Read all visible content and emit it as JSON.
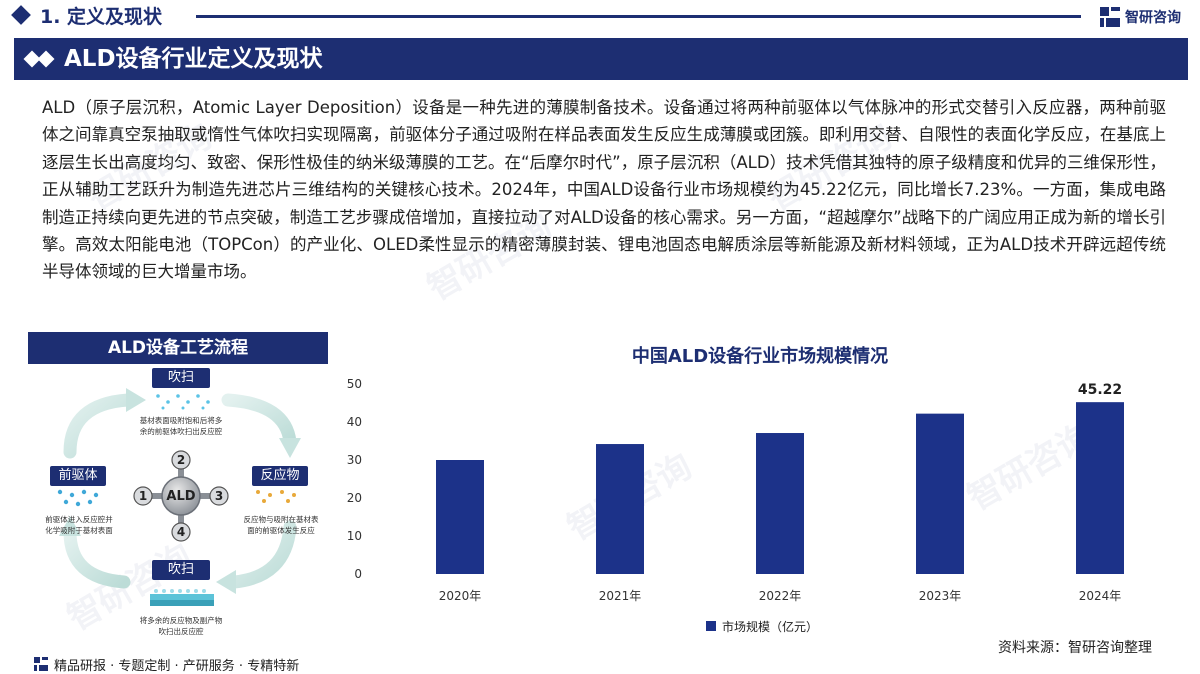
{
  "header": {
    "section_title": "1. 定义及现状",
    "logo_text": "智研咨询",
    "banner_title": "ALD设备行业定义及现状"
  },
  "body_text": "ALD（原子层沉积，Atomic Layer Deposition）设备是一种先进的薄膜制备技术。设备通过将两种前驱体以气体脉冲的形式交替引入反应器，两种前驱体之间靠真空泵抽取或惰性气体吹扫实现隔离，前驱体分子通过吸附在样品表面发生反应生成薄膜或团簇。即利用交替、自限性的表面化学反应，在基底上逐层生长出高度均匀、致密、保形性极佳的纳米级薄膜的工艺。在“后摩尔时代”，原子层沉积（ALD）技术凭借其独特的原子级精度和优异的三维保形性，正从辅助工艺跃升为制造先进芯片三维结构的关键核心技术。2024年，中国ALD设备行业市场规模约为45.22亿元，同比增长7.23%。一方面，集成电路制造正持续向更先进的节点突破，制造工艺步骤成倍增加，直接拉动了对ALD设备的核心需求。另一方面，“超越摩尔”战略下的广阔应用正成为新的增长引擎。高效太阳能电池（TOPCon）的产业化、OLED柔性显示的精密薄膜封装、锂电池固态电解质涂层等新能源及新材料领域，正为ALD技术开辟远超传统半导体领域的巨大增量市场。",
  "process_panel": {
    "title": "ALD设备工艺流程",
    "center_label": "ALD",
    "step_numbers": [
      "1",
      "2",
      "3",
      "4"
    ],
    "stages": {
      "top": {
        "label": "吹扫",
        "desc_line1": "基材表面吸附饱和后将多",
        "desc_line2": "余的前驱体吹扫出反应腔"
      },
      "left": {
        "label": "前驱体",
        "desc_line1": "前驱体进入反应腔并",
        "desc_line2": "化学吸附于基材表面"
      },
      "right": {
        "label": "反应物",
        "desc_line1": "反应物与吸附在基材表",
        "desc_line2": "面的前驱体发生反应"
      },
      "bottom": {
        "label": "吹扫",
        "desc_line1": "将多余的反应物及副产物",
        "desc_line2": "吹扫出反应腔"
      }
    }
  },
  "chart_data": {
    "type": "bar",
    "title": "中国ALD设备行业市场规模情况",
    "categories": [
      "2020年",
      "2021年",
      "2022年",
      "2023年",
      "2024年"
    ],
    "series": [
      {
        "name": "市场规模（亿元）",
        "values": [
          30.0,
          34.2,
          37.1,
          42.2,
          45.22
        ]
      }
    ],
    "data_labels": [
      "",
      "",
      "",
      "",
      "45.22"
    ],
    "ylim": [
      0,
      50
    ],
    "yticks": [
      "0",
      "10",
      "20",
      "30",
      "40",
      "50"
    ],
    "grid": false,
    "legend_position": "bottom",
    "bar_color": "#1c3289"
  },
  "source": "资料来源：智研咨询整理",
  "footer": "精品研报 · 专题定制 · 产研服务 · 专精特新",
  "watermark_text": "智研咨询"
}
